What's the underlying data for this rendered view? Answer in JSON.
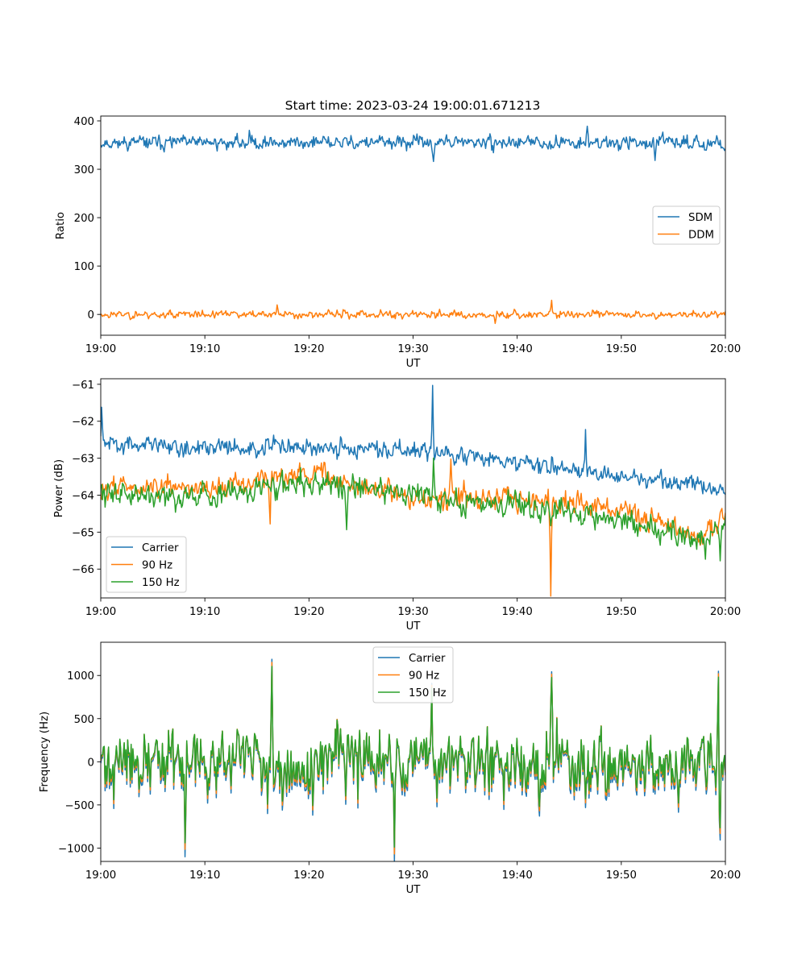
{
  "figure": {
    "title": "Start time: 2023-03-24 19:00:01.671213"
  },
  "chart_data": [
    {
      "type": "line",
      "xlabel": "UT",
      "ylabel": "Ratio",
      "x_ticks": [
        "19:00",
        "19:10",
        "19:20",
        "19:30",
        "19:40",
        "19:50",
        "20:00"
      ],
      "xlim_minutes": [
        0,
        60
      ],
      "ylim": [
        -43,
        410
      ],
      "y_ticks": [
        0,
        100,
        200,
        300,
        400
      ],
      "legend_position": "center-right",
      "grid": false,
      "series": [
        {
          "name": "SDM",
          "color": "#1f77b4",
          "mean": 355,
          "noise": 14,
          "seed": 11,
          "spikes": [
            [
              14.3,
              31
            ],
            [
              46.7,
              36
            ],
            [
              53.2,
              -35
            ],
            [
              32.0,
              -40
            ]
          ]
        },
        {
          "name": "DDM",
          "color": "#ff7f0e",
          "mean": 0,
          "noise": 8,
          "seed": 23,
          "spikes": [
            [
              43.3,
              33
            ],
            [
              16.9,
              24
            ],
            [
              37.9,
              -20
            ]
          ]
        }
      ]
    },
    {
      "type": "line",
      "xlabel": "UT",
      "ylabel": "Power (dB)",
      "x_ticks": [
        "19:00",
        "19:10",
        "19:20",
        "19:30",
        "19:40",
        "19:50",
        "20:00"
      ],
      "xlim_minutes": [
        0,
        60
      ],
      "ylim": [
        -66.78,
        -60.85
      ],
      "y_ticks": [
        -61,
        -62,
        -63,
        -64,
        -65,
        -66
      ],
      "legend_position": "lower-left",
      "grid": false,
      "series": [
        {
          "name": "Carrier",
          "color": "#1f77b4",
          "trend": [
            [
              0,
              -62.6
            ],
            [
              10,
              -62.7
            ],
            [
              20,
              -62.7
            ],
            [
              30,
              -62.8
            ],
            [
              40,
              -63.1
            ],
            [
              50,
              -63.5
            ],
            [
              57,
              -63.7
            ],
            [
              60,
              -64.0
            ]
          ],
          "noise": 0.25,
          "seed": 31,
          "spikes": [
            [
              0.1,
              1.0
            ],
            [
              31.9,
              1.7
            ],
            [
              46.6,
              0.9
            ]
          ]
        },
        {
          "name": "90 Hz",
          "color": "#ff7f0e",
          "trend": [
            [
              0,
              -63.8
            ],
            [
              10,
              -63.8
            ],
            [
              20,
              -63.4
            ],
            [
              30,
              -64.1
            ],
            [
              40,
              -64.1
            ],
            [
              50,
              -64.4
            ],
            [
              58,
              -65.2
            ],
            [
              60,
              -64.4
            ]
          ],
          "noise": 0.3,
          "seed": 43,
          "spikes": [
            [
              43.2,
              -2.3
            ],
            [
              16.3,
              -1.1
            ],
            [
              33.6,
              0.9
            ]
          ]
        },
        {
          "name": "150 Hz",
          "color": "#2ca02c",
          "trend": [
            [
              0,
              -63.9
            ],
            [
              10,
              -64.0
            ],
            [
              20,
              -63.6
            ],
            [
              30,
              -64.0
            ],
            [
              40,
              -64.3
            ],
            [
              50,
              -64.6
            ],
            [
              58,
              -65.3
            ],
            [
              60,
              -64.6
            ]
          ],
          "noise": 0.35,
          "seed": 59,
          "spikes": [
            [
              23.6,
              -1.2
            ],
            [
              32.0,
              1.0
            ],
            [
              59.5,
              -0.9
            ]
          ]
        }
      ]
    },
    {
      "type": "line",
      "xlabel": "UT",
      "ylabel": "Frequency (Hz)",
      "x_ticks": [
        "19:00",
        "19:10",
        "19:20",
        "19:30",
        "19:40",
        "19:50",
        "20:00"
      ],
      "xlim_minutes": [
        0,
        60
      ],
      "ylim": [
        -1155,
        1385
      ],
      "y_ticks": [
        -1000,
        -500,
        0,
        500,
        1000
      ],
      "legend_position": "upper-center",
      "grid": false,
      "base": {
        "noise": 360,
        "seed": 71,
        "spikes": [
          [
            16.4,
            1120
          ],
          [
            28.2,
            -1030
          ],
          [
            43.3,
            1150
          ],
          [
            59.3,
            1210
          ],
          [
            59.4,
            -810
          ],
          [
            8.1,
            -900
          ],
          [
            31.8,
            980
          ]
        ]
      },
      "series": [
        {
          "name": "Carrier",
          "color": "#1f77b4",
          "scale": 1.12,
          "offset": -50
        },
        {
          "name": "90 Hz",
          "color": "#ff7f0e",
          "scale": 1.06,
          "offset": -20
        },
        {
          "name": "150 Hz",
          "color": "#2ca02c",
          "scale": 1.0,
          "offset": 0
        }
      ]
    }
  ]
}
